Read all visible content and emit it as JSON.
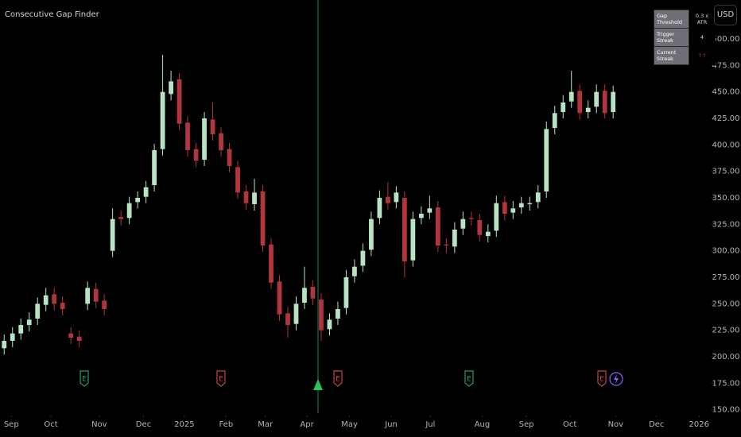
{
  "indicator_title": "Consecutive Gap Finder",
  "currency": "USD",
  "earnings_marker": "E",
  "table": {
    "rows": [
      [
        "Gap Threshold",
        "0.3 x ATR"
      ],
      [
        "Trigger Streak",
        "4"
      ],
      [
        "Current Streak",
        "↑↑"
      ]
    ]
  },
  "chart_data": {
    "type": "candlestick",
    "up_color": "#b9e4c3",
    "down_color": "#b0353f",
    "xlim": [
      -0.5,
      84.8
    ],
    "xticks": [
      {
        "value": 0.86,
        "label": "Sep"
      },
      {
        "value": 5.6,
        "label": "Oct"
      },
      {
        "value": 11.4,
        "label": "Nov"
      },
      {
        "value": 16.7,
        "label": "Dec"
      },
      {
        "value": 21.6,
        "label": "2025"
      },
      {
        "value": 26.6,
        "label": "Feb"
      },
      {
        "value": 31.3,
        "label": "Mar"
      },
      {
        "value": 36.3,
        "label": "Apr"
      },
      {
        "value": 41.4,
        "label": "May"
      },
      {
        "value": 46.4,
        "label": "Jun"
      },
      {
        "value": 51.1,
        "label": "Jul"
      },
      {
        "value": 57.3,
        "label": "Aug"
      },
      {
        "value": 62.6,
        "label": "Sep"
      },
      {
        "value": 67.8,
        "label": "Oct"
      },
      {
        "value": 73.3,
        "label": "Nov"
      },
      {
        "value": 78.2,
        "label": "Dec"
      },
      {
        "value": 83.3,
        "label": "2026"
      }
    ],
    "ylim": [
      146,
      503
    ],
    "yticks": [
      {
        "value": 150,
        "label": "150.00"
      },
      {
        "value": 175,
        "label": "175.00"
      },
      {
        "value": 200,
        "label": "200.00"
      },
      {
        "value": 225,
        "label": "225.00"
      },
      {
        "value": 250,
        "label": "250.00"
      },
      {
        "value": 275,
        "label": "275.00"
      },
      {
        "value": 300,
        "label": "300.00"
      },
      {
        "value": 325,
        "label": "325.00"
      },
      {
        "value": 350,
        "label": "350.00"
      },
      {
        "value": 375,
        "label": "375.00"
      },
      {
        "value": 400,
        "label": "400.00"
      },
      {
        "value": 425,
        "label": "425.00"
      },
      {
        "value": 450,
        "label": "450.00"
      },
      {
        "value": 475,
        "label": "475.00"
      },
      {
        "value": 500,
        "label": "500.00"
      }
    ],
    "open": [
      208,
      215,
      222,
      230,
      236,
      249,
      259,
      251,
      222,
      219,
      250,
      264,
      253,
      300,
      332,
      331,
      346,
      351,
      362,
      396,
      448,
      462,
      421,
      396,
      386,
      424,
      411,
      396,
      379,
      356,
      344,
      356,
      306,
      271,
      241,
      231,
      251,
      266,
      254,
      226,
      236,
      246,
      276,
      286,
      301,
      331,
      351,
      346,
      350,
      291,
      331,
      336,
      341,
      306,
      304,
      321,
      331,
      329,
      314,
      319,
      346,
      336,
      341,
      344,
      346,
      356,
      416,
      431,
      441,
      451,
      431,
      436,
      451,
      431
    ],
    "high": [
      221,
      228,
      236,
      242,
      256,
      265,
      265,
      257,
      228,
      225,
      271,
      270,
      259,
      340,
      338,
      351,
      356,
      366,
      401,
      485,
      470,
      468,
      427,
      402,
      431,
      440,
      417,
      402,
      385,
      362,
      368,
      362,
      312,
      277,
      247,
      257,
      285,
      272,
      260,
      241,
      252,
      282,
      292,
      307,
      337,
      357,
      365,
      361,
      356,
      337,
      342,
      352,
      347,
      312,
      327,
      337,
      337,
      335,
      325,
      352,
      352,
      347,
      351,
      351,
      362,
      422,
      437,
      447,
      470,
      457,
      442,
      457,
      457,
      456
    ],
    "low": [
      202,
      209,
      216,
      224,
      230,
      243,
      244,
      239,
      212,
      209,
      244,
      246,
      239,
      294,
      324,
      325,
      340,
      345,
      356,
      390,
      442,
      414,
      389,
      379,
      380,
      404,
      389,
      374,
      349,
      339,
      338,
      299,
      264,
      234,
      218,
      225,
      245,
      249,
      215,
      220,
      230,
      240,
      270,
      280,
      295,
      325,
      339,
      340,
      275,
      285,
      325,
      330,
      299,
      298,
      298,
      315,
      324,
      309,
      308,
      313,
      329,
      330,
      335,
      338,
      340,
      350,
      410,
      425,
      435,
      424,
      425,
      430,
      425,
      425
    ],
    "close": [
      215,
      222,
      230,
      235,
      250,
      258,
      250,
      245,
      218,
      215,
      265,
      252,
      245,
      330,
      330,
      345,
      350,
      360,
      395,
      450,
      460,
      420,
      395,
      385,
      425,
      410,
      395,
      380,
      355,
      345,
      355,
      305,
      270,
      240,
      230,
      250,
      265,
      255,
      225,
      235,
      245,
      275,
      285,
      300,
      330,
      350,
      345,
      355,
      290,
      330,
      335,
      340,
      305,
      305,
      320,
      330,
      330,
      315,
      318,
      345,
      335,
      340,
      345,
      345,
      355,
      415,
      430,
      440,
      450,
      430,
      435,
      450,
      430,
      450
    ]
  }
}
